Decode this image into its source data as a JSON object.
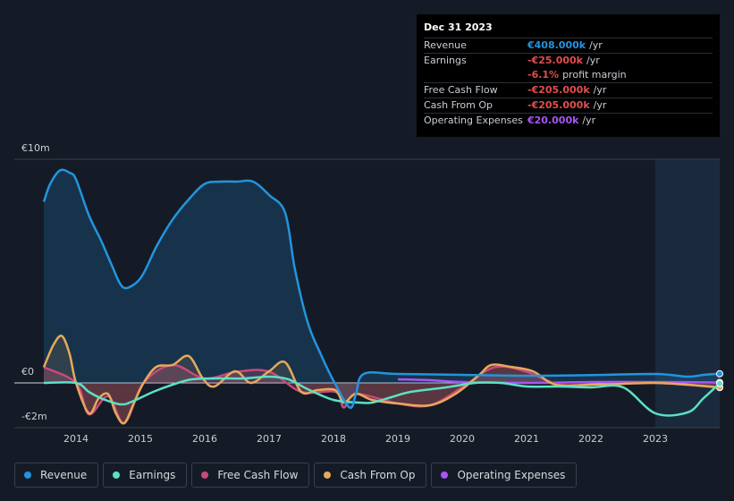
{
  "chart_data": {
    "type": "line",
    "xlim": [
      2013.5,
      2024
    ],
    "xticks": [
      2014,
      2015,
      2016,
      2017,
      2018,
      2019,
      2020,
      2021,
      2022,
      2023
    ],
    "ylim": [
      -2,
      10
    ],
    "yticks": [
      {
        "value": 10,
        "label": "€10m"
      },
      {
        "value": 0,
        "label": "€0"
      },
      {
        "value": -2,
        "label": "-€2m"
      }
    ],
    "grid": true,
    "series": [
      {
        "name": "Revenue",
        "color": "#2394df",
        "fill": true,
        "x": [
          2013.5,
          2013.6,
          2013.75,
          2013.9,
          2014.0,
          2014.2,
          2014.4,
          2014.55,
          2014.72,
          2014.9,
          2015.05,
          2015.25,
          2015.5,
          2015.75,
          2016.0,
          2016.25,
          2016.5,
          2016.75,
          2017.0,
          2017.25,
          2017.4,
          2017.6,
          2017.8,
          2018.0,
          2018.25,
          2018.35,
          2018.47,
          2019.0,
          2020.0,
          2021.0,
          2022.0,
          2023.0,
          2023.5,
          2023.75,
          2024.0
        ],
        "values": [
          8.1,
          8.9,
          9.5,
          9.4,
          9.1,
          7.5,
          6.3,
          5.3,
          4.3,
          4.4,
          4.9,
          6.1,
          7.3,
          8.2,
          8.9,
          9.0,
          9.0,
          9.0,
          8.4,
          7.6,
          5.1,
          2.7,
          1.3,
          0.1,
          -1.1,
          -0.5,
          0.4,
          0.4,
          0.36,
          0.32,
          0.35,
          0.4,
          0.28,
          0.36,
          0.408
        ]
      },
      {
        "name": "Earnings",
        "color": "#5ce0c6",
        "fill": false,
        "x": [
          2013.5,
          2014,
          2014.2,
          2014.4,
          2014.7,
          2014.9,
          2015.2,
          2015.5,
          2015.8,
          2016.2,
          2016.6,
          2017,
          2017.3,
          2017.6,
          2018,
          2018.4,
          2018.6,
          2018.9,
          2019.2,
          2019.75,
          2020.2,
          2020.6,
          2021,
          2021.5,
          2022,
          2022.5,
          2023,
          2023.5,
          2023.75,
          2024
        ],
        "values": [
          0,
          0,
          -0.4,
          -0.7,
          -0.96,
          -0.8,
          -0.4,
          -0.08,
          0.16,
          0.2,
          0.2,
          0.28,
          0.16,
          -0.28,
          -0.76,
          -0.88,
          -0.88,
          -0.64,
          -0.4,
          -0.2,
          0,
          0,
          -0.16,
          -0.16,
          -0.2,
          -0.2,
          -1.36,
          -1.32,
          -0.68,
          -0.025
        ]
      },
      {
        "name": "Free Cash Flow",
        "color": "#c94a7a",
        "fill": true,
        "x": [
          2013.5,
          2014,
          2014.2,
          2014.5,
          2014.75,
          2015.05,
          2015.5,
          2016,
          2016.5,
          2017,
          2017.5,
          2018.03,
          2018.16,
          2018.35,
          2019,
          2019.5,
          2020,
          2020.5,
          2021,
          2021.5,
          2022,
          2023,
          2024
        ],
        "values": [
          0.7,
          0,
          -1.4,
          -0.6,
          -1.8,
          0,
          0.8,
          0.2,
          0.5,
          0.5,
          -0.4,
          -0.4,
          -1.1,
          -0.5,
          -0.92,
          -1.0,
          -0.2,
          0.7,
          0.5,
          -0.08,
          -0.08,
          0,
          -0.205
        ]
      },
      {
        "name": "Cash From Op",
        "color": "#e8a85c",
        "fill": true,
        "x": [
          2013.5,
          2013.65,
          2013.78,
          2013.9,
          2014,
          2014.2,
          2014.35,
          2014.5,
          2014.62,
          2014.75,
          2014.9,
          2015.05,
          2015.25,
          2015.5,
          2015.75,
          2015.97,
          2016.15,
          2016.47,
          2016.72,
          2017,
          2017.25,
          2017.5,
          2017.75,
          2018.03,
          2018.16,
          2018.35,
          2018.6,
          2019,
          2019.5,
          2019.9,
          2020.25,
          2020.45,
          2020.75,
          2021.1,
          2021.45,
          2022,
          2022.5,
          2023,
          2023.5,
          2024
        ],
        "values": [
          0.7,
          1.7,
          2.1,
          1.3,
          0,
          -1.36,
          -0.7,
          -0.5,
          -1.36,
          -1.8,
          -0.9,
          0,
          0.72,
          0.8,
          1.2,
          0.2,
          -0.16,
          0.52,
          0,
          0.52,
          0.92,
          -0.4,
          -0.32,
          -0.32,
          -0.88,
          -0.48,
          -0.76,
          -0.92,
          -1.0,
          -0.48,
          0.32,
          0.8,
          0.72,
          0.52,
          -0.08,
          -0.08,
          -0.04,
          0,
          -0.08,
          -0.205
        ]
      },
      {
        "name": "Operating Expenses",
        "color": "#a855f7",
        "fill": false,
        "x": [
          2019,
          2019.5,
          2020,
          2021,
          2022,
          2023,
          2024
        ],
        "values": [
          0.16,
          0.12,
          0.04,
          0,
          0.04,
          0.04,
          0.02
        ]
      }
    ]
  },
  "tooltip": {
    "date": "Dec 31 2023",
    "rows": [
      {
        "label": "Revenue",
        "value": "€408.000k",
        "unit": "/yr",
        "color": "#2394df"
      },
      {
        "label": "Earnings",
        "value": "-€25.000k",
        "unit": "/yr",
        "color": "#e24d4d"
      },
      {
        "value": "-6.1%",
        "unit": "profit margin",
        "color": "#e24d4d"
      },
      {
        "label": "Free Cash Flow",
        "value": "-€205.000k",
        "unit": "/yr",
        "color": "#e24d4d"
      },
      {
        "label": "Cash From Op",
        "value": "-€205.000k",
        "unit": "/yr",
        "color": "#e24d4d"
      },
      {
        "label": "Operating Expenses",
        "value": "€20.000k",
        "unit": "/yr",
        "color": "#a855f7"
      }
    ]
  }
}
